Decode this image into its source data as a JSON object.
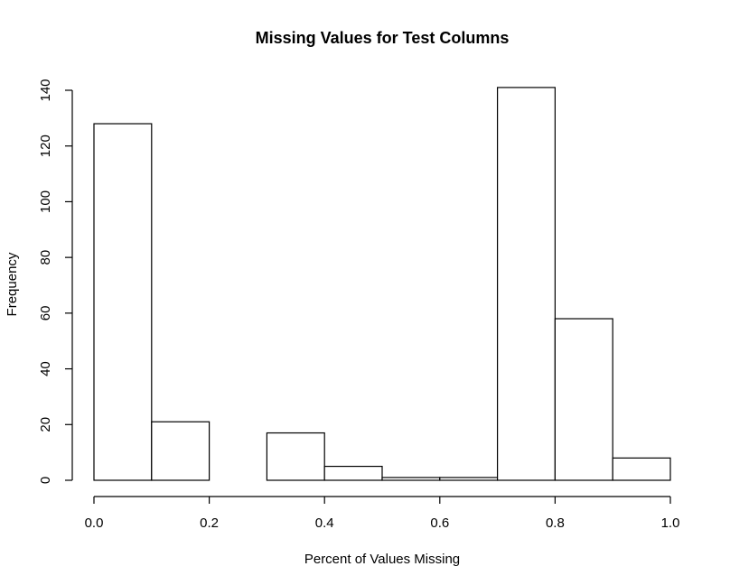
{
  "chart_data": {
    "type": "bar",
    "title": "Missing Values for Test Columns",
    "xlabel": "Percent of Values Missing",
    "ylabel": "Frequency",
    "bins": [
      {
        "x0": 0.0,
        "x1": 0.1,
        "count": 128
      },
      {
        "x0": 0.1,
        "x1": 0.2,
        "count": 21
      },
      {
        "x0": 0.2,
        "x1": 0.3,
        "count": 0
      },
      {
        "x0": 0.3,
        "x1": 0.4,
        "count": 17
      },
      {
        "x0": 0.4,
        "x1": 0.5,
        "count": 5
      },
      {
        "x0": 0.5,
        "x1": 0.6,
        "count": 1
      },
      {
        "x0": 0.6,
        "x1": 0.7,
        "count": 1
      },
      {
        "x0": 0.7,
        "x1": 0.8,
        "count": 141
      },
      {
        "x0": 0.8,
        "x1": 0.9,
        "count": 58
      },
      {
        "x0": 0.9,
        "x1": 1.0,
        "count": 8
      }
    ],
    "xlim": [
      0,
      1
    ],
    "ylim": [
      0,
      140
    ],
    "x_ticks": [
      "0.0",
      "0.2",
      "0.4",
      "0.6",
      "0.8",
      "1.0"
    ],
    "y_ticks": [
      "0",
      "20",
      "40",
      "60",
      "80",
      "100",
      "120",
      "140"
    ],
    "grid": false,
    "bar_fill": "#ffffff",
    "bar_stroke": "#000000"
  }
}
